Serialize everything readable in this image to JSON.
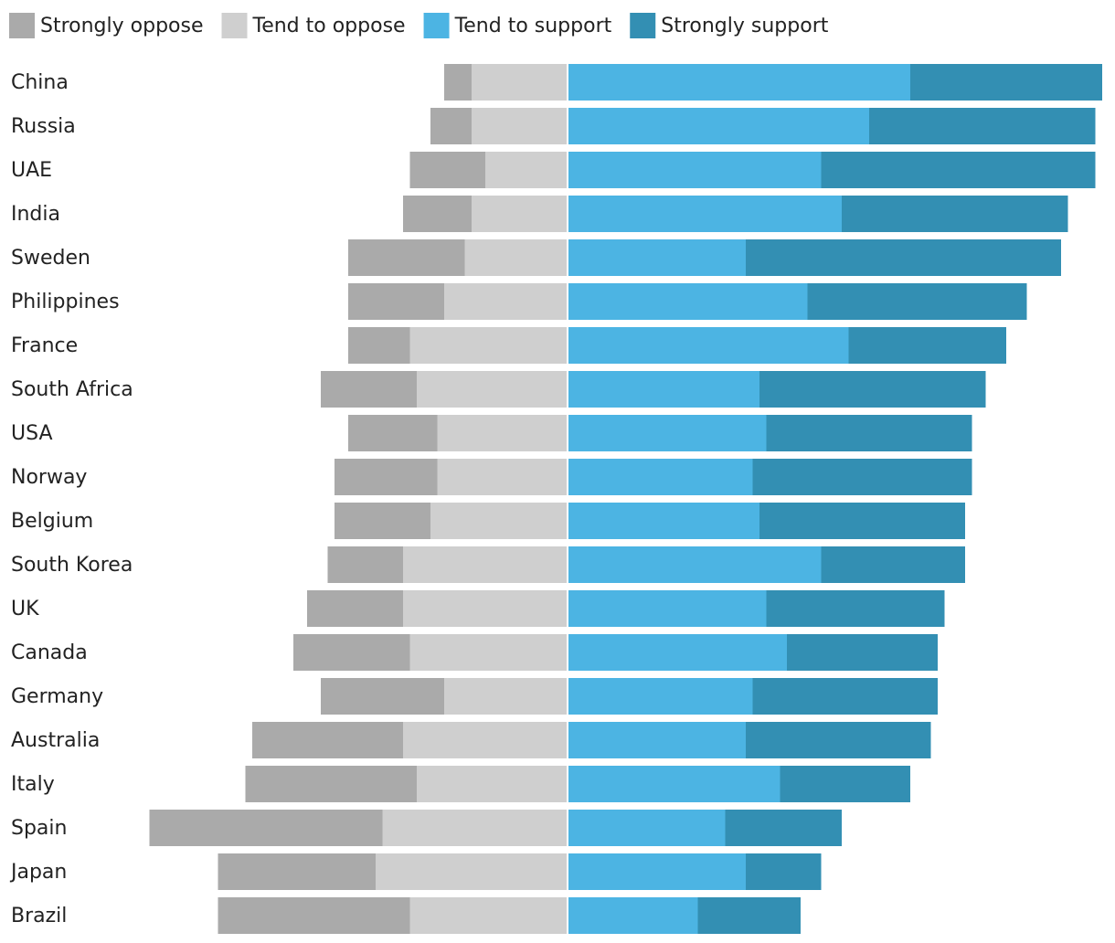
{
  "chart_data": {
    "type": "diverging_bar",
    "categories": [
      "China",
      "Russia",
      "UAE",
      "India",
      "Sweden",
      "Philippines",
      "France",
      "South Africa",
      "USA",
      "Norway",
      "Belgium",
      "South Korea",
      "UK",
      "Canada",
      "Germany",
      "Australia",
      "Italy",
      "Spain",
      "Japan",
      "Brazil"
    ],
    "series": [
      {
        "name": "Strongly oppose",
        "color": "#aaaaaa",
        "side": "left",
        "values": [
          4,
          6,
          11,
          10,
          17,
          14,
          9,
          14,
          13,
          15,
          14,
          11,
          14,
          17,
          18,
          22,
          25,
          34,
          23,
          28
        ]
      },
      {
        "name": "Tend to oppose",
        "color": "#cfcfcf",
        "side": "left",
        "values": [
          14,
          14,
          12,
          14,
          15,
          18,
          23,
          22,
          19,
          19,
          20,
          24,
          24,
          23,
          18,
          24,
          22,
          27,
          28,
          23
        ]
      },
      {
        "name": "Tend to support",
        "color": "#4cb4e3",
        "side": "right",
        "values": [
          50,
          44,
          37,
          40,
          26,
          35,
          41,
          28,
          29,
          27,
          28,
          37,
          29,
          32,
          27,
          26,
          31,
          23,
          26,
          19
        ]
      },
      {
        "name": "Strongly support",
        "color": "#338fb3",
        "side": "right",
        "values": [
          28,
          33,
          40,
          33,
          46,
          32,
          23,
          33,
          30,
          32,
          30,
          21,
          26,
          22,
          27,
          27,
          19,
          17,
          11,
          15
        ]
      }
    ],
    "legend": "top-left"
  }
}
